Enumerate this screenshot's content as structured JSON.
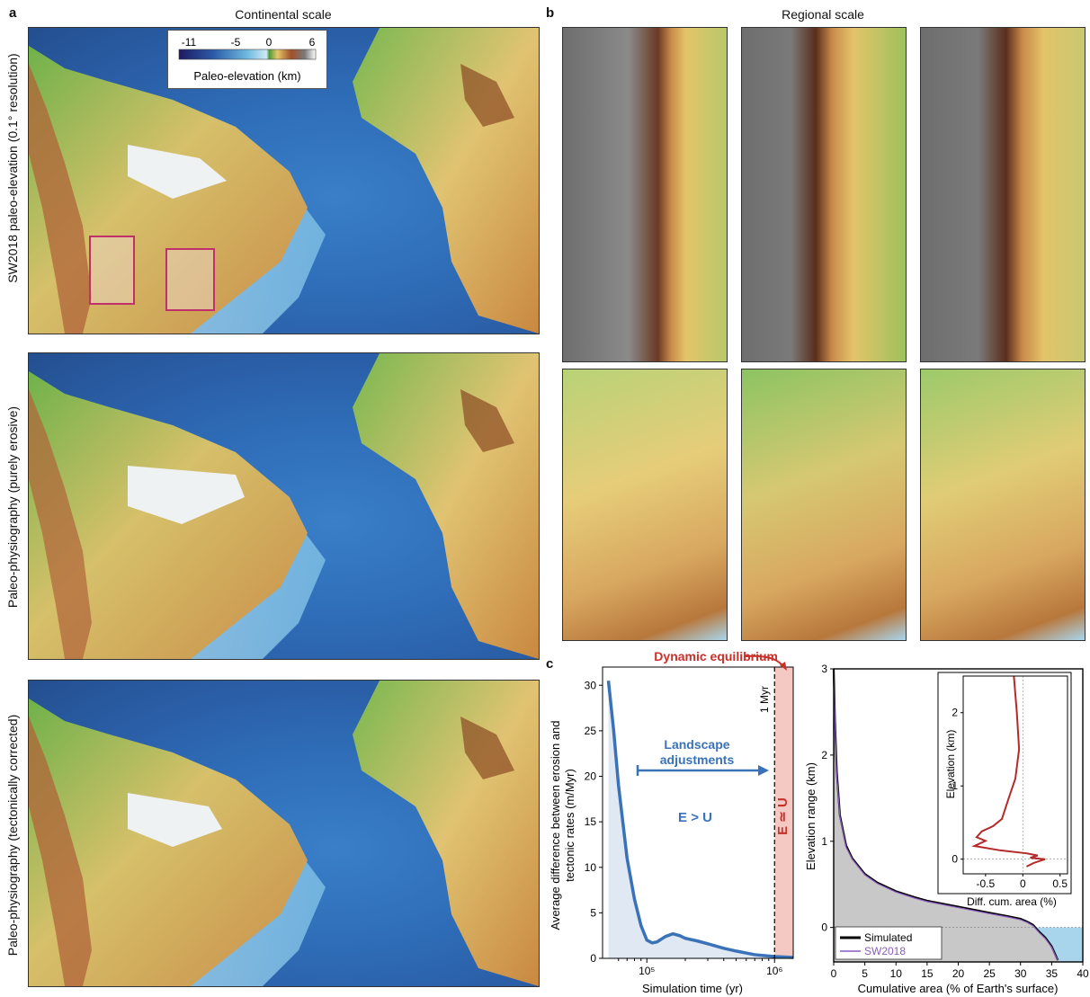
{
  "panels": {
    "a": {
      "letter": "a",
      "title": "Continental scale",
      "row_labels": [
        "SW2018 paleo-elevation (0.1° resolution)",
        "Paleo-physiography (purely erosive)",
        "Paleo-physiography (tectonically corrected)"
      ],
      "legend": {
        "ticks": [
          "-11",
          "-5",
          "0",
          "6"
        ],
        "title": "Paleo-elevation (km)"
      }
    },
    "b": {
      "letter": "b",
      "title": "Regional scale"
    },
    "c": {
      "letter": "c",
      "left_chart": {
        "ylabel_line1": "Average difference between erosion and",
        "ylabel_line2": "tectonic rates (m/Myr)",
        "xlabel": "Simulation time (yr)",
        "yticks": [
          "0",
          "5",
          "10",
          "15",
          "20",
          "25",
          "30"
        ],
        "xticks": [
          "10⁵",
          "10⁶"
        ],
        "annotations": {
          "dynamic_equilibrium": "Dynamic equilibrium",
          "one_myr": "1 Myr",
          "landscape_line1": "Landscape",
          "landscape_line2": "adjustments",
          "e_gt_u": "E > U",
          "e_approx_u": "E ≃ U"
        }
      },
      "right_chart": {
        "ylabel": "Elevation range (km)",
        "xlabel": "Cumulative area (% of Earth's surface)",
        "yticks": [
          "0",
          "1",
          "2",
          "3"
        ],
        "xticks": [
          "0",
          "5",
          "10",
          "15",
          "20",
          "25",
          "30",
          "35",
          "40"
        ],
        "legend": [
          "Simulated",
          "SW2018"
        ],
        "inset": {
          "ylabel": "Elevation (km)",
          "xlabel": "Diff. cum. area (%)",
          "yticks": [
            "0",
            "1",
            "2"
          ],
          "xticks": [
            "-0.5",
            "0",
            "0.5"
          ]
        }
      }
    }
  },
  "colors": {
    "curve_blue": "#3a72b8",
    "equilibrium_red": "#c8302a",
    "equilibrium_fill": "#f4c9c4",
    "simulated": "#000000",
    "sw2018": "#8a5cc0",
    "inset_curve": "#b42a2a",
    "roi_box": "#c0306a"
  },
  "chart_data": [
    {
      "type": "line",
      "xscale": "log",
      "x": [
        50000,
        55000,
        60000,
        70000,
        80000,
        90000,
        100000,
        110000,
        120000,
        140000,
        160000,
        180000,
        200000,
        250000,
        300000,
        400000,
        500000,
        700000,
        1000000,
        1400000
      ],
      "series": [
        {
          "values": [
            30.5,
            25,
            19,
            11,
            6.5,
            3.6,
            2.0,
            1.7,
            1.8,
            2.4,
            2.7,
            2.5,
            2.2,
            1.9,
            1.6,
            1.1,
            0.8,
            0.4,
            0.2,
            0.1
          ]
        }
      ],
      "xlim": [
        45000,
        1400000
      ],
      "ylim": [
        0,
        32
      ],
      "xlabel": "Simulation time (yr)",
      "ylabel": "Average difference between erosion and tectonic rates (m/Myr)"
    },
    {
      "type": "area",
      "series": [
        {
          "name": "Simulated",
          "x": [
            0,
            0.2,
            0.5,
            1,
            2,
            3,
            5,
            7,
            10,
            13,
            15,
            20,
            25,
            28,
            30,
            31,
            32,
            33,
            34,
            35,
            35.5,
            36
          ],
          "values": [
            3.0,
            2.4,
            1.8,
            1.3,
            0.95,
            0.8,
            0.62,
            0.52,
            0.42,
            0.35,
            0.31,
            0.24,
            0.17,
            0.13,
            0.1,
            0.07,
            0.03,
            -0.05,
            -0.12,
            -0.22,
            -0.3,
            -0.38
          ]
        },
        {
          "name": "SW2018",
          "x": [
            0,
            0.2,
            0.5,
            1,
            2,
            3,
            5,
            7,
            10,
            13,
            15,
            20,
            25,
            28,
            30,
            31,
            32,
            33,
            34,
            35,
            35.5,
            36
          ],
          "values": [
            3.0,
            2.35,
            1.75,
            1.28,
            0.93,
            0.79,
            0.61,
            0.51,
            0.41,
            0.34,
            0.3,
            0.23,
            0.16,
            0.12,
            0.09,
            0.06,
            0.02,
            -0.06,
            -0.13,
            -0.23,
            -0.31,
            -0.38
          ]
        }
      ],
      "xlim": [
        0,
        40
      ],
      "ylim": [
        -0.4,
        3
      ],
      "xlabel": "Cumulative area (% of Earth's surface)",
      "ylabel": "Elevation range (km)"
    },
    {
      "type": "line",
      "x": [
        -0.12,
        -0.08,
        -0.05,
        -0.1,
        -0.2,
        -0.28,
        -0.4,
        -0.55,
        -0.62,
        -0.5,
        -0.65,
        -0.3,
        0.05,
        0.2,
        0.1,
        0.3,
        0.15,
        0.05
      ],
      "series": [
        {
          "values": [
            2.5,
            2.0,
            1.5,
            1.1,
            0.8,
            0.55,
            0.45,
            0.38,
            0.3,
            0.25,
            0.18,
            0.12,
            0.08,
            0.05,
            0.02,
            0.0,
            -0.05,
            -0.1
          ]
        }
      ],
      "xlim": [
        -0.8,
        0.6
      ],
      "ylim": [
        -0.2,
        2.5
      ],
      "xlabel": "Diff. cum. area (%)",
      "ylabel": "Elevation (km)"
    }
  ]
}
